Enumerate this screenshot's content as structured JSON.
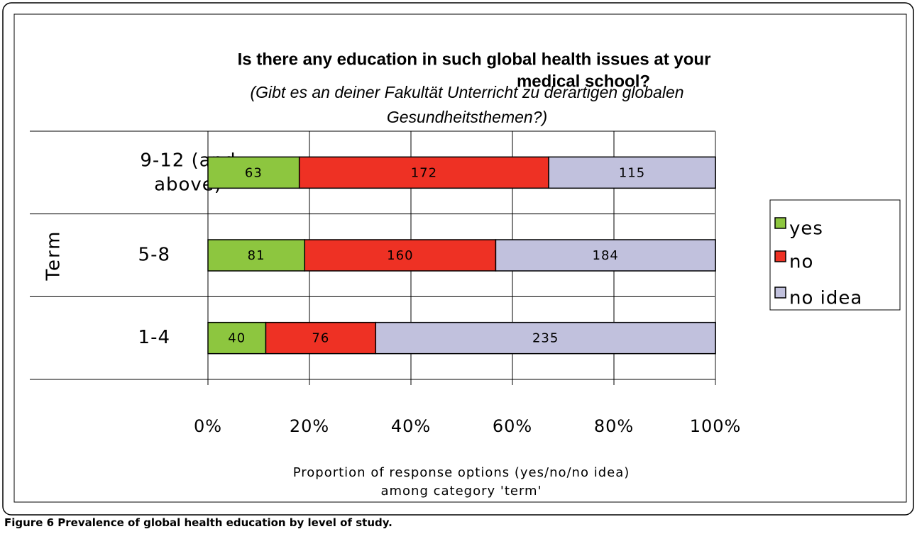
{
  "chart_data": {
    "type": "bar",
    "orientation": "horizontal",
    "stack": "percent",
    "title": [
      "Is there any education in such global health issues at your",
      "medical school?"
    ],
    "subtitle": [
      "(Gibt es an deiner Fakultät Unterricht zu derartigen globalen",
      "Gesundheitsthemen?)"
    ],
    "categories": [
      "9-12 (and above)",
      "5-8",
      "1-4"
    ],
    "series": [
      {
        "name": "yes",
        "color": "#8dc63f",
        "values": [
          63,
          81,
          40
        ]
      },
      {
        "name": "no",
        "color": "#ee3124",
        "values": [
          172,
          160,
          76
        ]
      },
      {
        "name": "no idea",
        "color": "#c1c1dd",
        "values": [
          115,
          184,
          235
        ]
      }
    ],
    "xlim": [
      0,
      100
    ],
    "xticks": [
      {
        "value": 0,
        "label": "0%"
      },
      {
        "value": 20,
        "label": "20%"
      },
      {
        "value": 40,
        "label": "40%"
      },
      {
        "value": 60,
        "label": "60%"
      },
      {
        "value": 80,
        "label": "80%"
      },
      {
        "value": 100,
        "label": "100%"
      }
    ],
    "xlabel": [
      "Proportion of response options (yes/no/no idea)",
      "among category 'term'"
    ],
    "ylabel": "Term",
    "grid": true,
    "legend": "right"
  },
  "caption": {
    "label": "Figure 6",
    "text": "Prevalence of global health education by level of study."
  }
}
